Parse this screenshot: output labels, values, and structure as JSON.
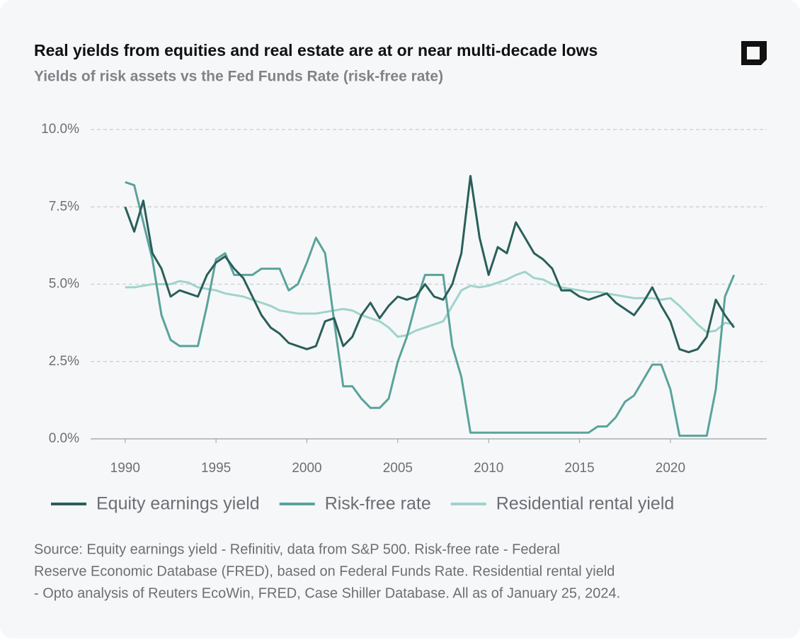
{
  "chart_data": {
    "type": "line",
    "title": "Real yields from equities and real estate are at or near multi-decade lows",
    "subtitle": "Yields of risk assets vs the Fed Funds Rate (risk-free rate)",
    "source": [
      "Source: Equity earnings yield - Refinitiv, data from S&P 500. Risk-free rate - Federal",
      "Reserve Economic Database (FRED), based on Federal Funds Rate. Residential rental yield",
      "- Opto analysis of Reuters EcoWin, FRED, Case Shiller Database. All as of January 25, 2024."
    ],
    "x": [
      1990,
      1990.5,
      1991,
      1991.5,
      1992,
      1992.5,
      1993,
      1993.5,
      1994,
      1994.5,
      1995,
      1995.5,
      1996,
      1996.5,
      1997,
      1997.5,
      1998,
      1998.5,
      1999,
      1999.5,
      2000,
      2000.5,
      2001,
      2001.5,
      2002,
      2002.5,
      2003,
      2003.5,
      2004,
      2004.5,
      2005,
      2005.5,
      2006,
      2006.5,
      2007,
      2007.5,
      2008,
      2008.5,
      2009,
      2009.5,
      2010,
      2010.5,
      2011,
      2011.5,
      2012,
      2012.5,
      2013,
      2013.5,
      2014,
      2014.5,
      2015,
      2015.5,
      2016,
      2016.5,
      2017,
      2017.5,
      2018,
      2018.5,
      2019,
      2019.5,
      2020,
      2020.5,
      2021,
      2021.5,
      2022,
      2022.5,
      2023,
      2023.5
    ],
    "series": [
      {
        "name": "Equity earnings yield",
        "color": "#2a5f5a",
        "values": [
          7.5,
          6.7,
          7.7,
          6.0,
          5.5,
          4.6,
          4.8,
          4.7,
          4.6,
          5.3,
          5.7,
          5.9,
          5.5,
          5.2,
          4.6,
          4.0,
          3.6,
          3.4,
          3.1,
          3.0,
          2.9,
          3.0,
          3.8,
          3.9,
          3.0,
          3.3,
          4.0,
          4.4,
          3.9,
          4.3,
          4.6,
          4.5,
          4.6,
          5.0,
          4.6,
          4.5,
          5.0,
          6.0,
          8.5,
          6.5,
          5.3,
          6.2,
          6.0,
          7.0,
          6.5,
          6.0,
          5.8,
          5.5,
          4.8,
          4.8,
          4.6,
          4.5,
          4.6,
          4.7,
          4.4,
          4.2,
          4.0,
          4.4,
          4.9,
          4.3,
          3.8,
          2.9,
          2.8,
          2.9,
          3.3,
          4.5,
          4.0,
          3.6
        ]
      },
      {
        "name": "Risk-free rate",
        "color": "#5aa39b",
        "values": [
          8.3,
          8.2,
          7.0,
          5.8,
          4.0,
          3.2,
          3.0,
          3.0,
          3.0,
          4.3,
          5.8,
          6.0,
          5.3,
          5.3,
          5.3,
          5.5,
          5.5,
          5.5,
          4.8,
          5.0,
          5.7,
          6.5,
          6.0,
          3.8,
          1.7,
          1.7,
          1.3,
          1.0,
          1.0,
          1.3,
          2.5,
          3.3,
          4.4,
          5.3,
          5.3,
          5.3,
          3.0,
          2.0,
          0.2,
          0.2,
          0.2,
          0.2,
          0.2,
          0.2,
          0.2,
          0.2,
          0.2,
          0.2,
          0.2,
          0.2,
          0.2,
          0.2,
          0.4,
          0.4,
          0.7,
          1.2,
          1.4,
          1.9,
          2.4,
          2.4,
          1.6,
          0.1,
          0.1,
          0.1,
          0.1,
          1.6,
          4.6,
          5.3
        ]
      },
      {
        "name": "Residential rental yield",
        "color": "#9fd3cb",
        "values": [
          4.9,
          4.9,
          4.95,
          5.0,
          5.0,
          5.0,
          5.1,
          5.05,
          4.9,
          4.85,
          4.8,
          4.7,
          4.65,
          4.6,
          4.5,
          4.4,
          4.3,
          4.15,
          4.1,
          4.05,
          4.05,
          4.05,
          4.1,
          4.15,
          4.2,
          4.15,
          4.0,
          3.9,
          3.8,
          3.6,
          3.3,
          3.35,
          3.5,
          3.6,
          3.7,
          3.8,
          4.3,
          4.8,
          4.95,
          4.9,
          4.95,
          5.05,
          5.15,
          5.3,
          5.4,
          5.2,
          5.15,
          5.0,
          4.9,
          4.85,
          4.8,
          4.75,
          4.75,
          4.7,
          4.65,
          4.6,
          4.55,
          4.55,
          4.55,
          4.5,
          4.55,
          4.3,
          4.0,
          3.7,
          3.45,
          3.5,
          3.75,
          3.7
        ]
      }
    ],
    "xlim": [
      1988.1,
      2025.3
    ],
    "xticks": [
      1990,
      1995,
      2000,
      2005,
      2010,
      2015,
      2020
    ],
    "ylim": [
      0,
      10
    ],
    "yticks": [
      {
        "value": 0,
        "label": "0.0%"
      },
      {
        "value": 2.5,
        "label": "2.5%"
      },
      {
        "value": 5,
        "label": "5.0%"
      },
      {
        "value": 7.5,
        "label": "7.5%"
      },
      {
        "value": 10,
        "label": "10.0%"
      }
    ],
    "grid": true,
    "legend": "bottom"
  }
}
